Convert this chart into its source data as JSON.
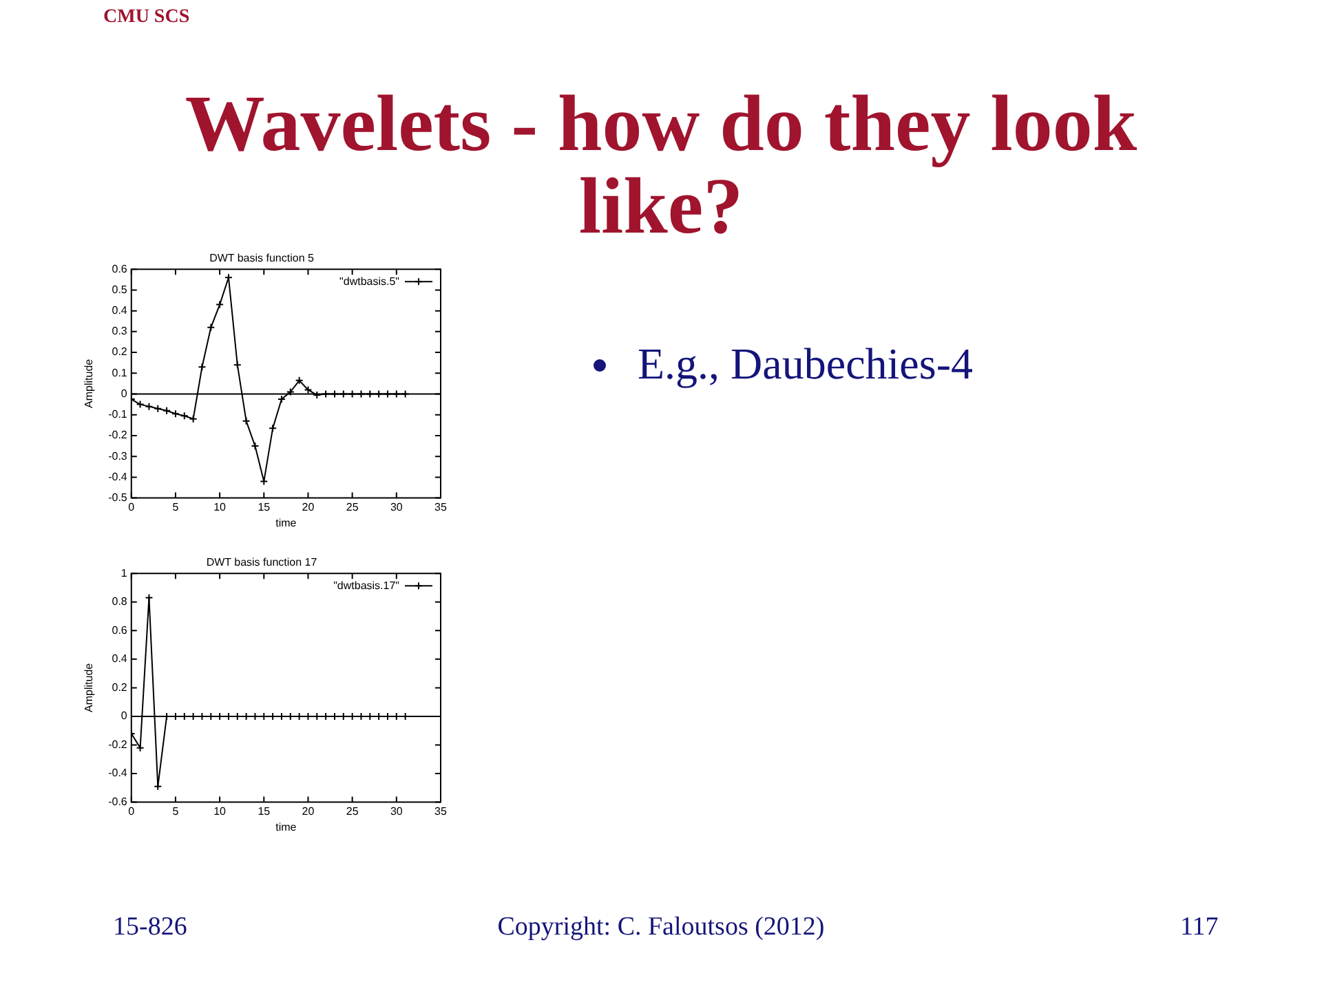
{
  "chart_data": [
    {
      "type": "line",
      "title": "DWT basis function 5",
      "xlabel": "time",
      "ylabel": "Amplitude",
      "x": [
        0,
        1,
        2,
        3,
        4,
        5,
        6,
        7,
        8,
        9,
        10,
        11,
        12,
        13,
        14,
        15,
        16,
        17,
        18,
        19,
        20,
        21,
        22,
        23,
        24,
        25,
        26,
        27,
        28,
        29,
        30,
        31
      ],
      "series": [
        {
          "name": "\"dwtbasis.5\"",
          "color": "#000000",
          "values": [
            -0.025,
            -0.05,
            -0.06,
            -0.07,
            -0.08,
            -0.095,
            -0.105,
            -0.12,
            0.13,
            0.32,
            0.43,
            0.56,
            0.14,
            -0.13,
            -0.25,
            -0.42,
            -0.165,
            -0.025,
            0.01,
            0.065,
            0.02,
            -0.005,
            0,
            0,
            0,
            0,
            0,
            0,
            0,
            0,
            0,
            0
          ]
        }
      ],
      "xlim": [
        0,
        35
      ],
      "xticks": [
        0,
        5,
        10,
        15,
        20,
        25,
        30,
        35
      ],
      "ylim": [
        -0.5,
        0.6
      ],
      "yticks": [
        -0.5,
        -0.4,
        -0.3,
        -0.2,
        -0.1,
        0,
        0.1,
        0.2,
        0.3,
        0.4,
        0.5,
        0.6
      ],
      "grid": false,
      "legend": "top right",
      "marker": "cross",
      "line_style": "solid",
      "ref_lines": [
        {
          "axis": "y",
          "value": 0,
          "color": "#000000"
        }
      ],
      "annotations": [
        "CMU SCS",
        "Wavelets - how do they look like?",
        "E.g., Daubechies-4",
        "15-826",
        "Copyright: C. Faloutsos (2012)",
        "117"
      ]
    },
    {
      "type": "line",
      "title": "DWT basis function 17",
      "xlabel": "time",
      "ylabel": "Amplitude",
      "x": [
        0,
        1,
        2,
        3,
        4,
        5,
        6,
        7,
        8,
        9,
        10,
        11,
        12,
        13,
        14,
        15,
        16,
        17,
        18,
        19,
        20,
        21,
        22,
        23,
        24,
        25,
        26,
        27,
        28,
        29,
        30,
        31
      ],
      "series": [
        {
          "name": "\"dwtbasis.17\"",
          "color": "#000000",
          "values": [
            -0.12,
            -0.22,
            0.83,
            -0.49,
            0,
            0,
            0,
            0,
            0,
            0,
            0,
            0,
            0,
            0,
            0,
            0,
            0,
            0,
            0,
            0,
            0,
            0,
            0,
            0,
            0,
            0,
            0,
            0,
            0,
            0,
            0,
            0
          ]
        }
      ],
      "xlim": [
        0,
        35
      ],
      "xticks": [
        0,
        5,
        10,
        15,
        20,
        25,
        30,
        35
      ],
      "ylim": [
        -0.6,
        1
      ],
      "yticks": [
        -0.6,
        -0.4,
        -0.2,
        0,
        0.2,
        0.4,
        0.6,
        0.8,
        1
      ],
      "grid": false,
      "legend": "top right",
      "marker": "cross",
      "line_style": "solid",
      "ref_lines": [
        {
          "axis": "y",
          "value": 0,
          "color": "#000000"
        }
      ]
    }
  ]
}
